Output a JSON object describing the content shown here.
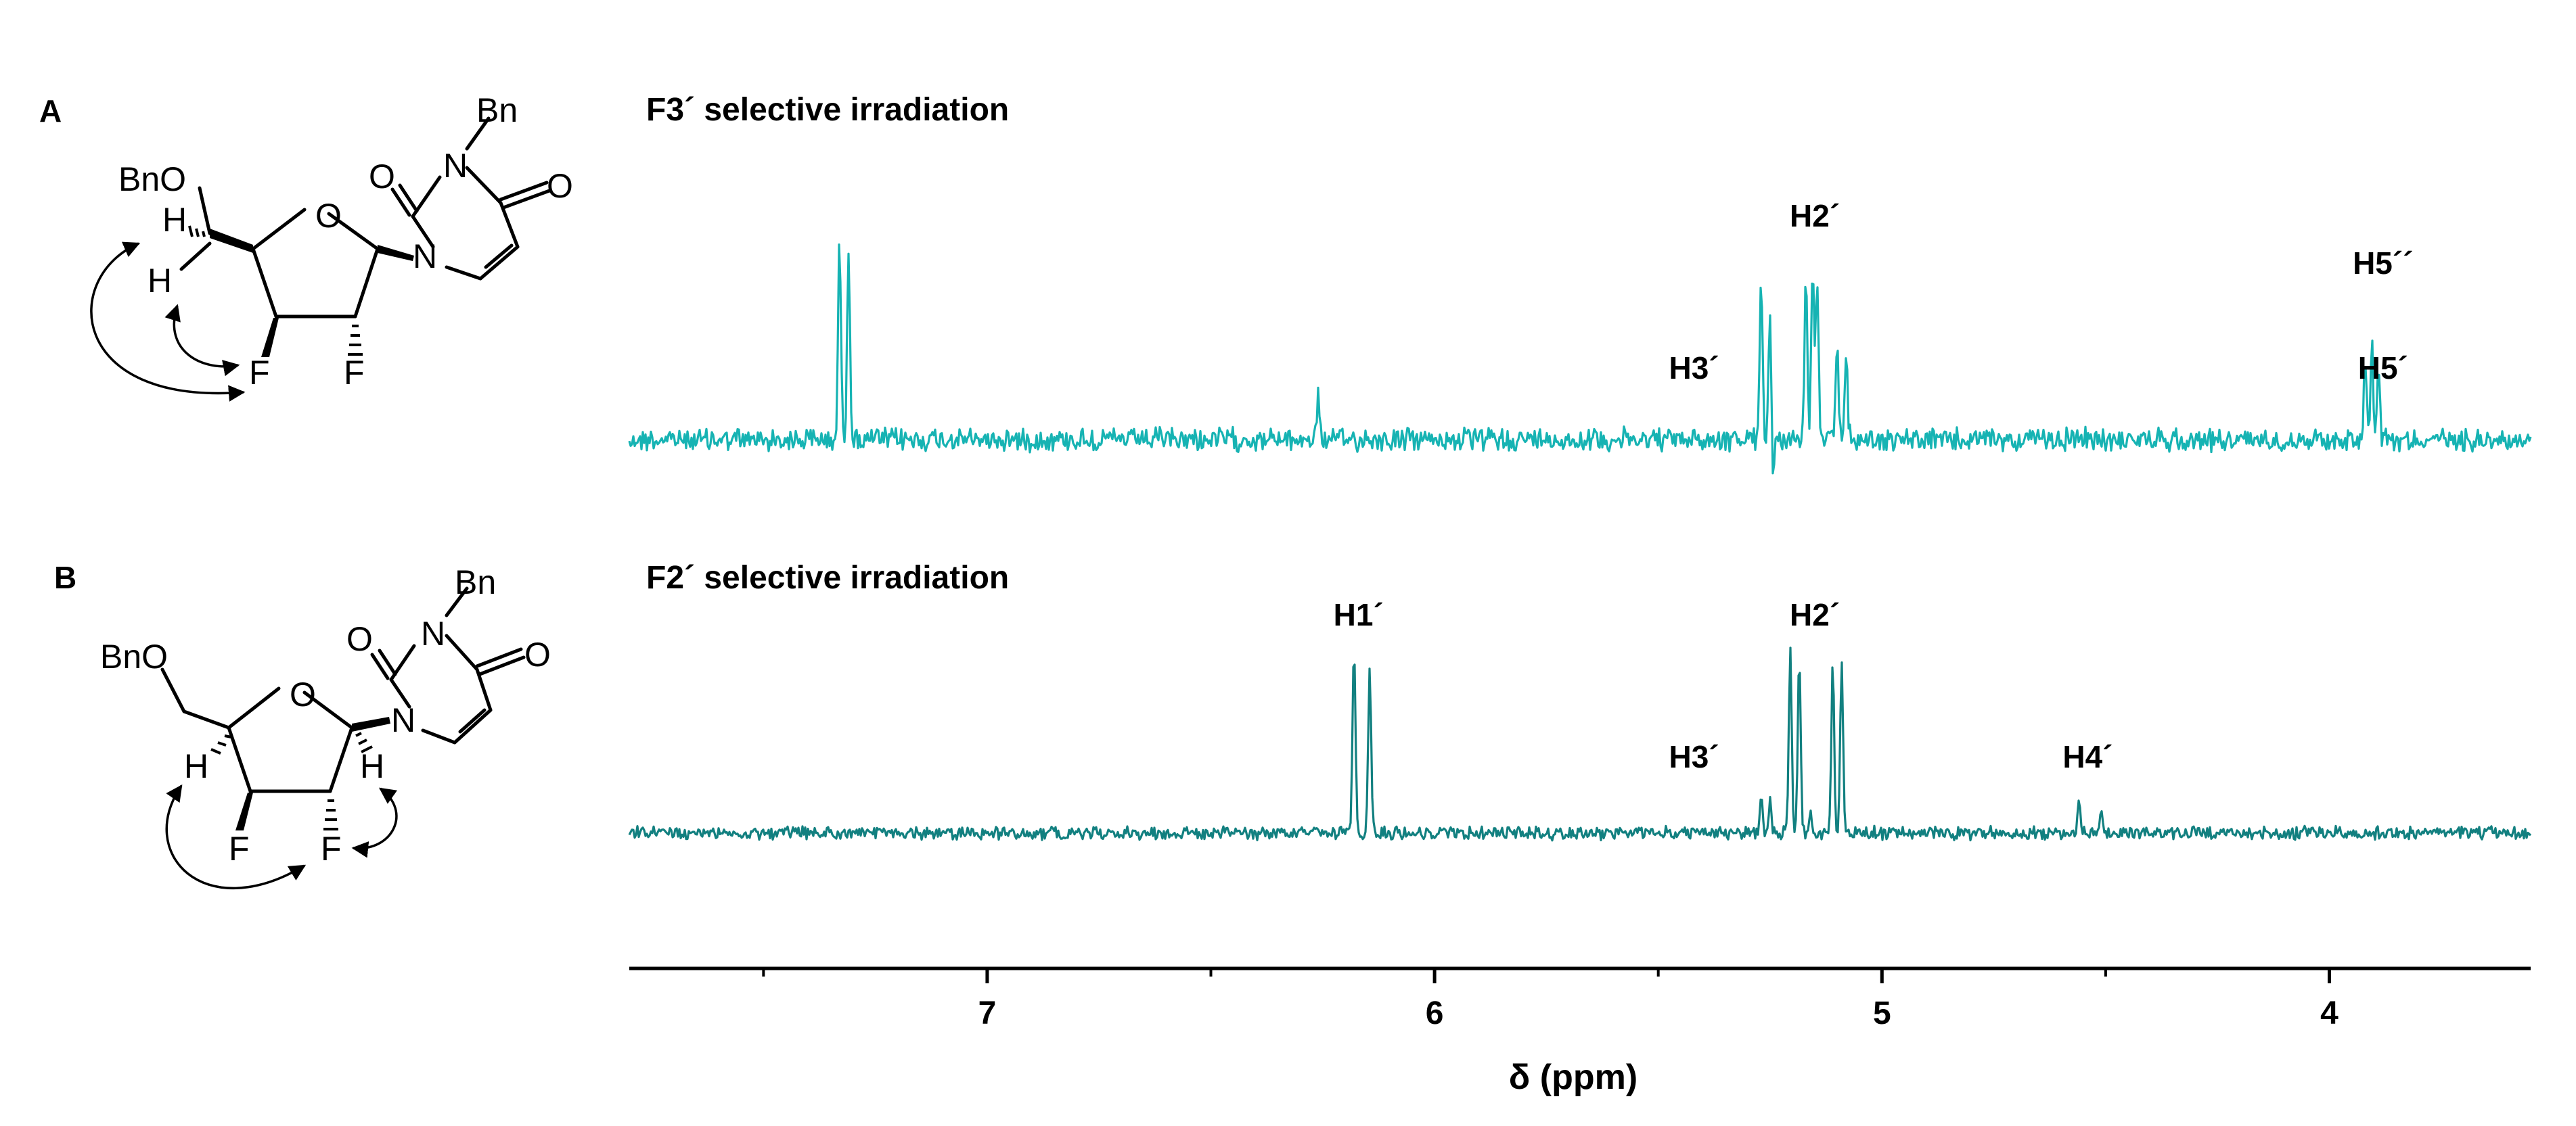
{
  "panels": [
    {
      "letter": "A",
      "title": "F3´ selective irradiation"
    },
    {
      "letter": "B",
      "title": "F2´ selective irradiation"
    }
  ],
  "molecules": {
    "A": {
      "bn_top": "Bn",
      "o_ring": "O",
      "n_bottom": "N",
      "n_top": "N",
      "o_c2": "O",
      "o_c4": "O",
      "bno": "BnO",
      "h_top": "H",
      "h_bottom": "H",
      "f3": "F",
      "f2": "F"
    },
    "B": {
      "bn_top": "Bn",
      "o_ring": "O",
      "n_bottom": "N",
      "n_top": "N",
      "o_c2": "O",
      "o_c4": "O",
      "bno": "BnO",
      "h4": "H",
      "h1": "H",
      "f3": "F",
      "f2": "F"
    }
  },
  "colors": {
    "spectrum_a": "#16b3b3",
    "spectrum_b": "#128080",
    "axis": "#000000"
  },
  "chart_data": [
    {
      "type": "line",
      "title": "F3´ selective irradiation",
      "xlabel": "δ (ppm)",
      "xlim": [
        7.8,
        3.55
      ],
      "x_reversed": true,
      "peaks": [
        {
          "ppm": 7.33,
          "height": 1.0
        },
        {
          "ppm": 7.31,
          "height": 1.0
        },
        {
          "ppm": 6.26,
          "height": 0.22
        },
        {
          "ppm": 5.27,
          "height": 0.78
        },
        {
          "ppm": 5.25,
          "height": 0.75
        },
        {
          "ppm": 5.245,
          "height": -0.25
        },
        {
          "ppm": 5.17,
          "height": 0.82
        },
        {
          "ppm": 5.155,
          "height": 0.86
        },
        {
          "ppm": 5.145,
          "height": 0.8
        },
        {
          "ppm": 5.1,
          "height": 0.48
        },
        {
          "ppm": 5.08,
          "height": 0.48
        },
        {
          "ppm": 3.92,
          "height": 0.42
        },
        {
          "ppm": 3.905,
          "height": 0.5
        },
        {
          "ppm": 3.89,
          "height": 0.38
        }
      ],
      "annotations": [
        {
          "text": "H2´",
          "ppm": 5.15,
          "row": 0
        },
        {
          "text": "H3´",
          "ppm": 5.42,
          "row": 2
        },
        {
          "text": "H5´´",
          "ppm": 3.88,
          "row": 1
        },
        {
          "text": "H5´",
          "ppm": 3.88,
          "row": 2
        }
      ]
    },
    {
      "type": "line",
      "title": "F2´ selective irradiation",
      "xlabel": "δ (ppm)",
      "xlim": [
        7.8,
        3.55
      ],
      "x_reversed": true,
      "peaks": [
        {
          "ppm": 6.18,
          "height": 1.0
        },
        {
          "ppm": 6.145,
          "height": 0.92
        },
        {
          "ppm": 5.27,
          "height": 0.2
        },
        {
          "ppm": 5.25,
          "height": 0.18
        },
        {
          "ppm": 5.205,
          "height": 1.0
        },
        {
          "ppm": 5.185,
          "height": 0.96
        },
        {
          "ppm": 5.16,
          "height": 0.12
        },
        {
          "ppm": 5.11,
          "height": 0.9
        },
        {
          "ppm": 5.09,
          "height": 0.94
        },
        {
          "ppm": 4.56,
          "height": 0.16
        },
        {
          "ppm": 4.51,
          "height": 0.12
        }
      ],
      "annotations": [
        {
          "text": "H1´",
          "ppm": 6.17,
          "row": 0
        },
        {
          "text": "H2´",
          "ppm": 5.15,
          "row": 0
        },
        {
          "text": "H3´",
          "ppm": 5.42,
          "row": 2
        },
        {
          "text": "H4´",
          "ppm": 4.54,
          "row": 2
        }
      ]
    }
  ],
  "axis": {
    "label": "δ (ppm)",
    "xlim": [
      7.8,
      3.55
    ],
    "major_ticks": [
      7,
      6,
      5,
      4
    ],
    "tick_labels": [
      "7",
      "6",
      "5",
      "4"
    ],
    "minor_ticks": [
      7.5,
      6.5,
      5.5,
      4.5
    ]
  }
}
